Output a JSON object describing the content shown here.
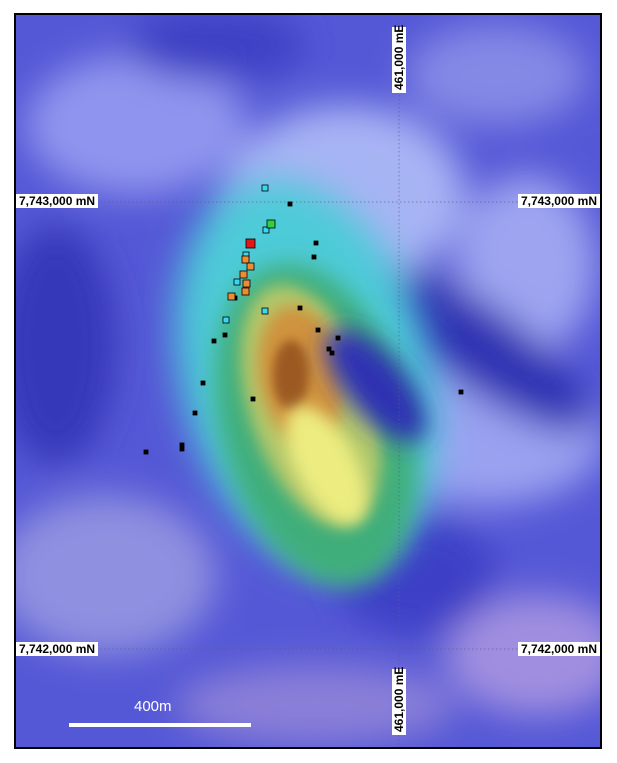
{
  "grid_labels": {
    "northing_top": "7,743,000 mN",
    "northing_bottom": "7,742,000 mN",
    "easting": "461,000 mE"
  },
  "scale_bar": {
    "label": "400m"
  },
  "colors": {
    "background_low": "#3b3fc8",
    "background_mid": "#8086e8",
    "anomaly_cyan": "#5fe6d6",
    "anomaly_green": "#2db36a",
    "anomaly_yellow": "#ecec84",
    "anomaly_orange": "#d88a3c",
    "anomaly_brown": "#9c5a24",
    "marker_black": "#000000",
    "marker_cyan": "#38d8f0",
    "marker_orange": "#f08c30",
    "marker_red": "#e01818",
    "marker_green": "#30d040"
  }
}
